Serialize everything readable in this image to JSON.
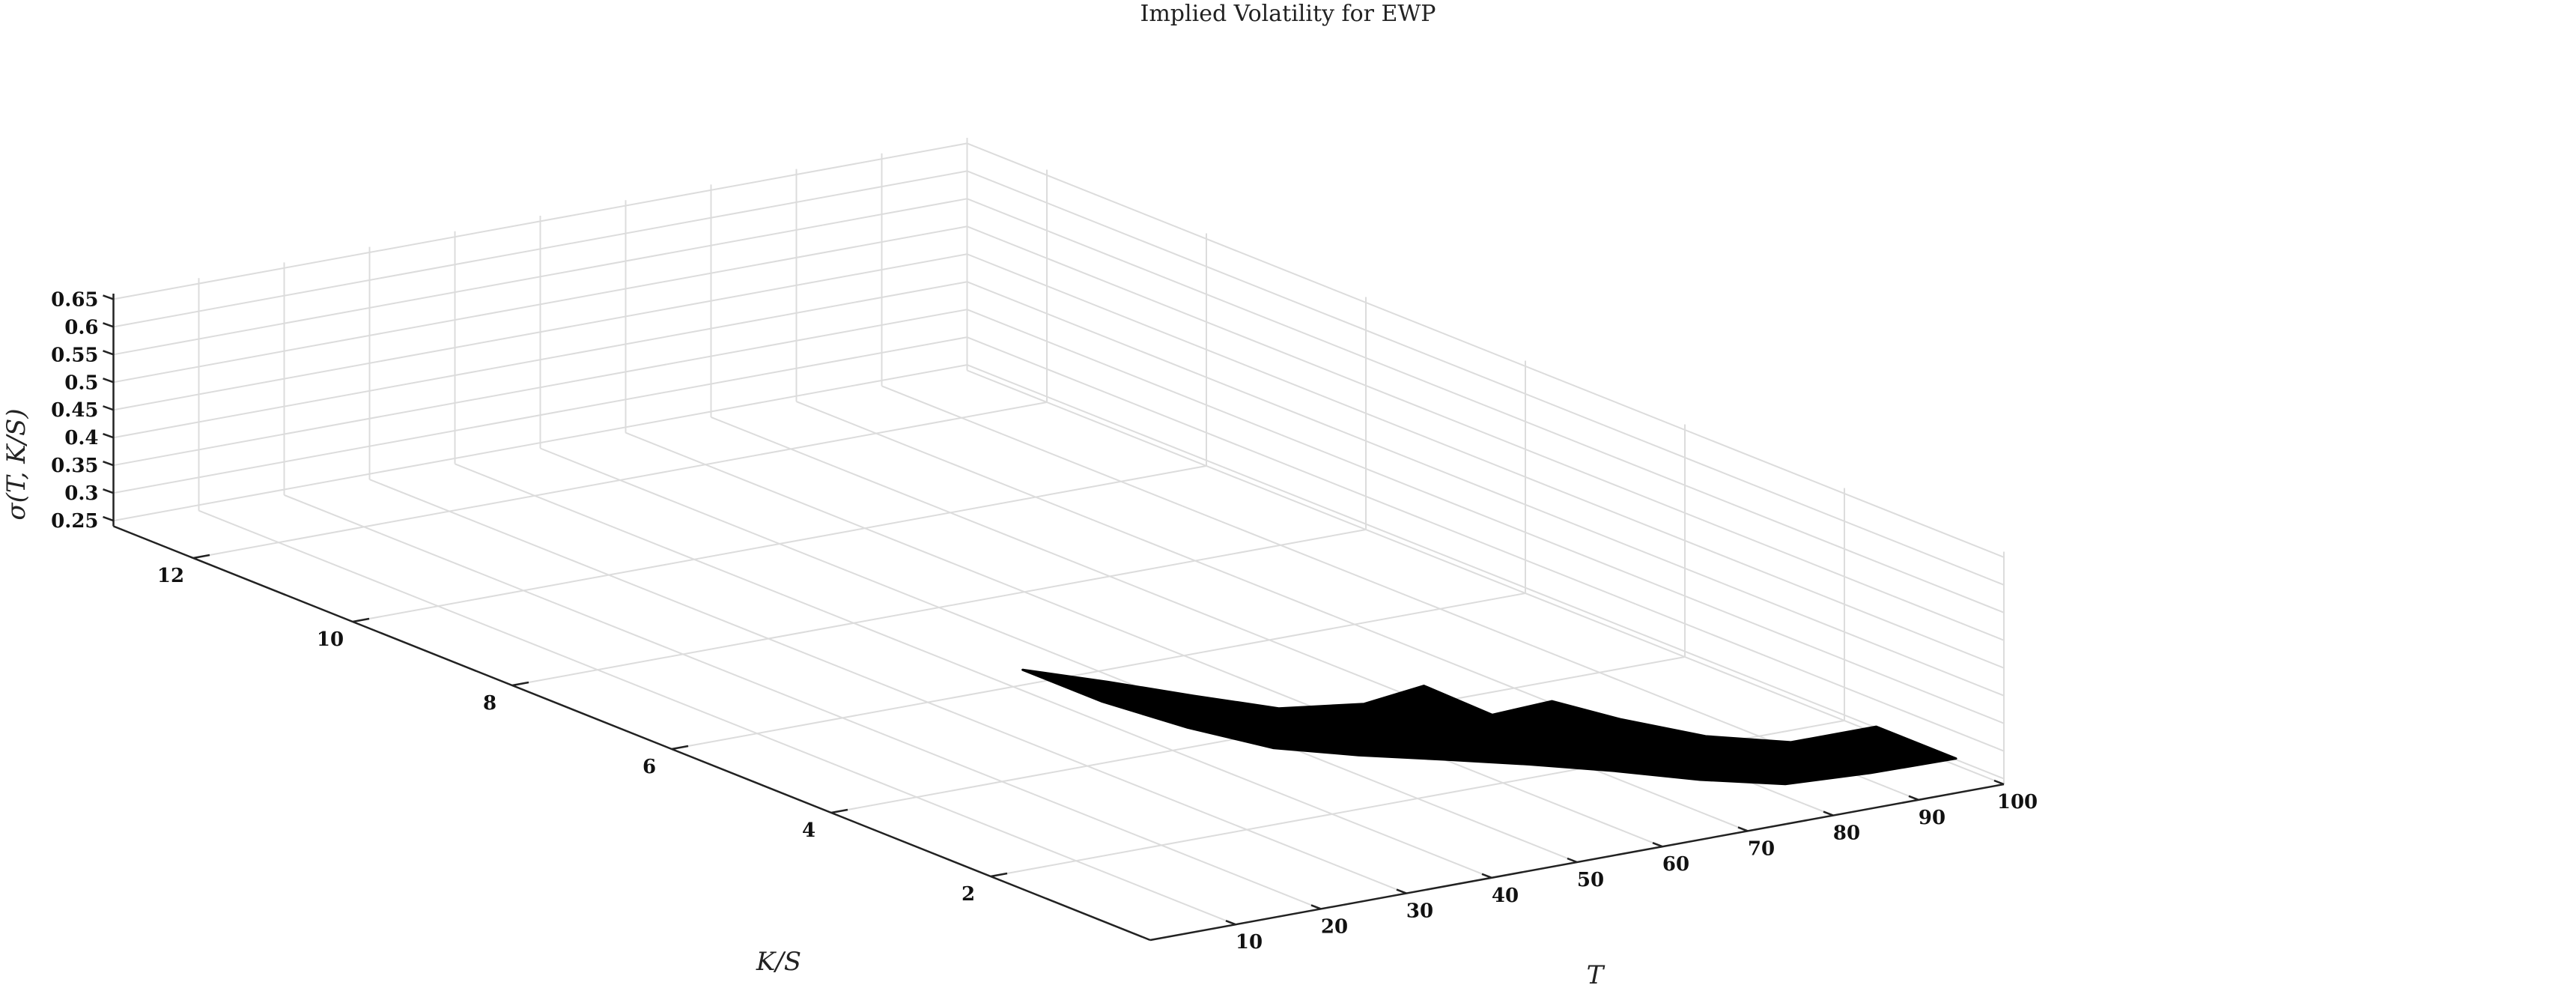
{
  "chart_data": {
    "type": "surface",
    "title": "Implied Volatility for EWP",
    "xlabel": "T",
    "ylabel": "K/S",
    "zlabel": "σ(T, K/S)",
    "x_ticks": [
      10,
      20,
      30,
      40,
      50,
      60,
      70,
      80,
      90,
      100
    ],
    "y_ticks": [
      2,
      4,
      6,
      8,
      10,
      12
    ],
    "z_ticks": [
      "0.25",
      "0.3",
      "0.35",
      "0.4",
      "0.45",
      "0.5",
      "0.55",
      "0.6",
      "0.65"
    ],
    "xlim": [
      0,
      100
    ],
    "ylim": [
      0,
      13
    ],
    "zlim": [
      0.24,
      0.66
    ],
    "grid": true,
    "surface_color": "#000000",
    "front_edge": {
      "K/S": 0.6,
      "T": [
        0,
        10,
        20,
        30,
        40,
        50,
        60,
        70,
        80,
        90,
        100
      ],
      "sigma": [
        0.636,
        0.561,
        0.496,
        0.455,
        0.419,
        0.382,
        0.342,
        0.298,
        0.262,
        0.254,
        0.252
      ]
    },
    "back_edge": {
      "K/S": 1.6,
      "T": [
        0,
        10,
        20,
        30,
        40,
        47,
        55,
        62,
        70,
        80,
        90,
        100
      ],
      "sigma": [
        0.636,
        0.586,
        0.533,
        0.482,
        0.462,
        0.475,
        0.4,
        0.405,
        0.35,
        0.291,
        0.252,
        0.252
      ]
    }
  }
}
